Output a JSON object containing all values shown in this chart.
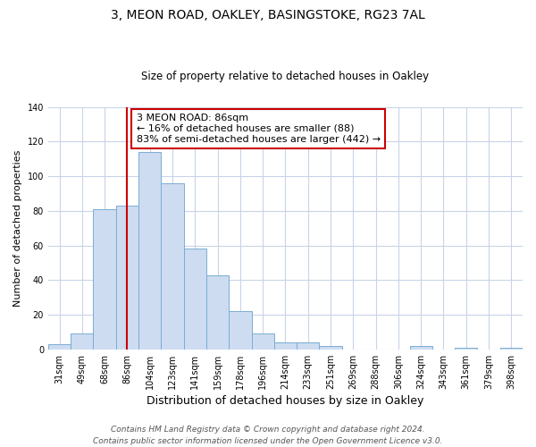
{
  "title": "3, MEON ROAD, OAKLEY, BASINGSTOKE, RG23 7AL",
  "subtitle": "Size of property relative to detached houses in Oakley",
  "xlabel": "Distribution of detached houses by size in Oakley",
  "ylabel": "Number of detached properties",
  "bar_labels": [
    "31sqm",
    "49sqm",
    "68sqm",
    "86sqm",
    "104sqm",
    "123sqm",
    "141sqm",
    "159sqm",
    "178sqm",
    "196sqm",
    "214sqm",
    "233sqm",
    "251sqm",
    "269sqm",
    "288sqm",
    "306sqm",
    "324sqm",
    "343sqm",
    "361sqm",
    "379sqm",
    "398sqm"
  ],
  "bar_values": [
    3,
    9,
    81,
    83,
    114,
    96,
    58,
    43,
    22,
    9,
    4,
    4,
    2,
    0,
    0,
    0,
    2,
    0,
    1,
    0,
    1
  ],
  "bar_color": "#cddcf0",
  "bar_edge_color": "#7aadd4",
  "vline_x_index": 3,
  "vline_color": "#cc0000",
  "annotation_text": "3 MEON ROAD: 86sqm\n← 16% of detached houses are smaller (88)\n83% of semi-detached houses are larger (442) →",
  "annotation_box_facecolor": "#ffffff",
  "annotation_box_edgecolor": "#cc0000",
  "ylim": [
    0,
    140
  ],
  "yticks": [
    0,
    20,
    40,
    60,
    80,
    100,
    120,
    140
  ],
  "footer_line1": "Contains HM Land Registry data © Crown copyright and database right 2024.",
  "footer_line2": "Contains public sector information licensed under the Open Government Licence v3.0.",
  "background_color": "#ffffff",
  "grid_color": "#c8d4e8",
  "title_fontsize": 10,
  "subtitle_fontsize": 8.5,
  "ylabel_fontsize": 8,
  "xlabel_fontsize": 9,
  "tick_fontsize": 7,
  "annotation_fontsize": 8,
  "footer_fontsize": 6.5
}
